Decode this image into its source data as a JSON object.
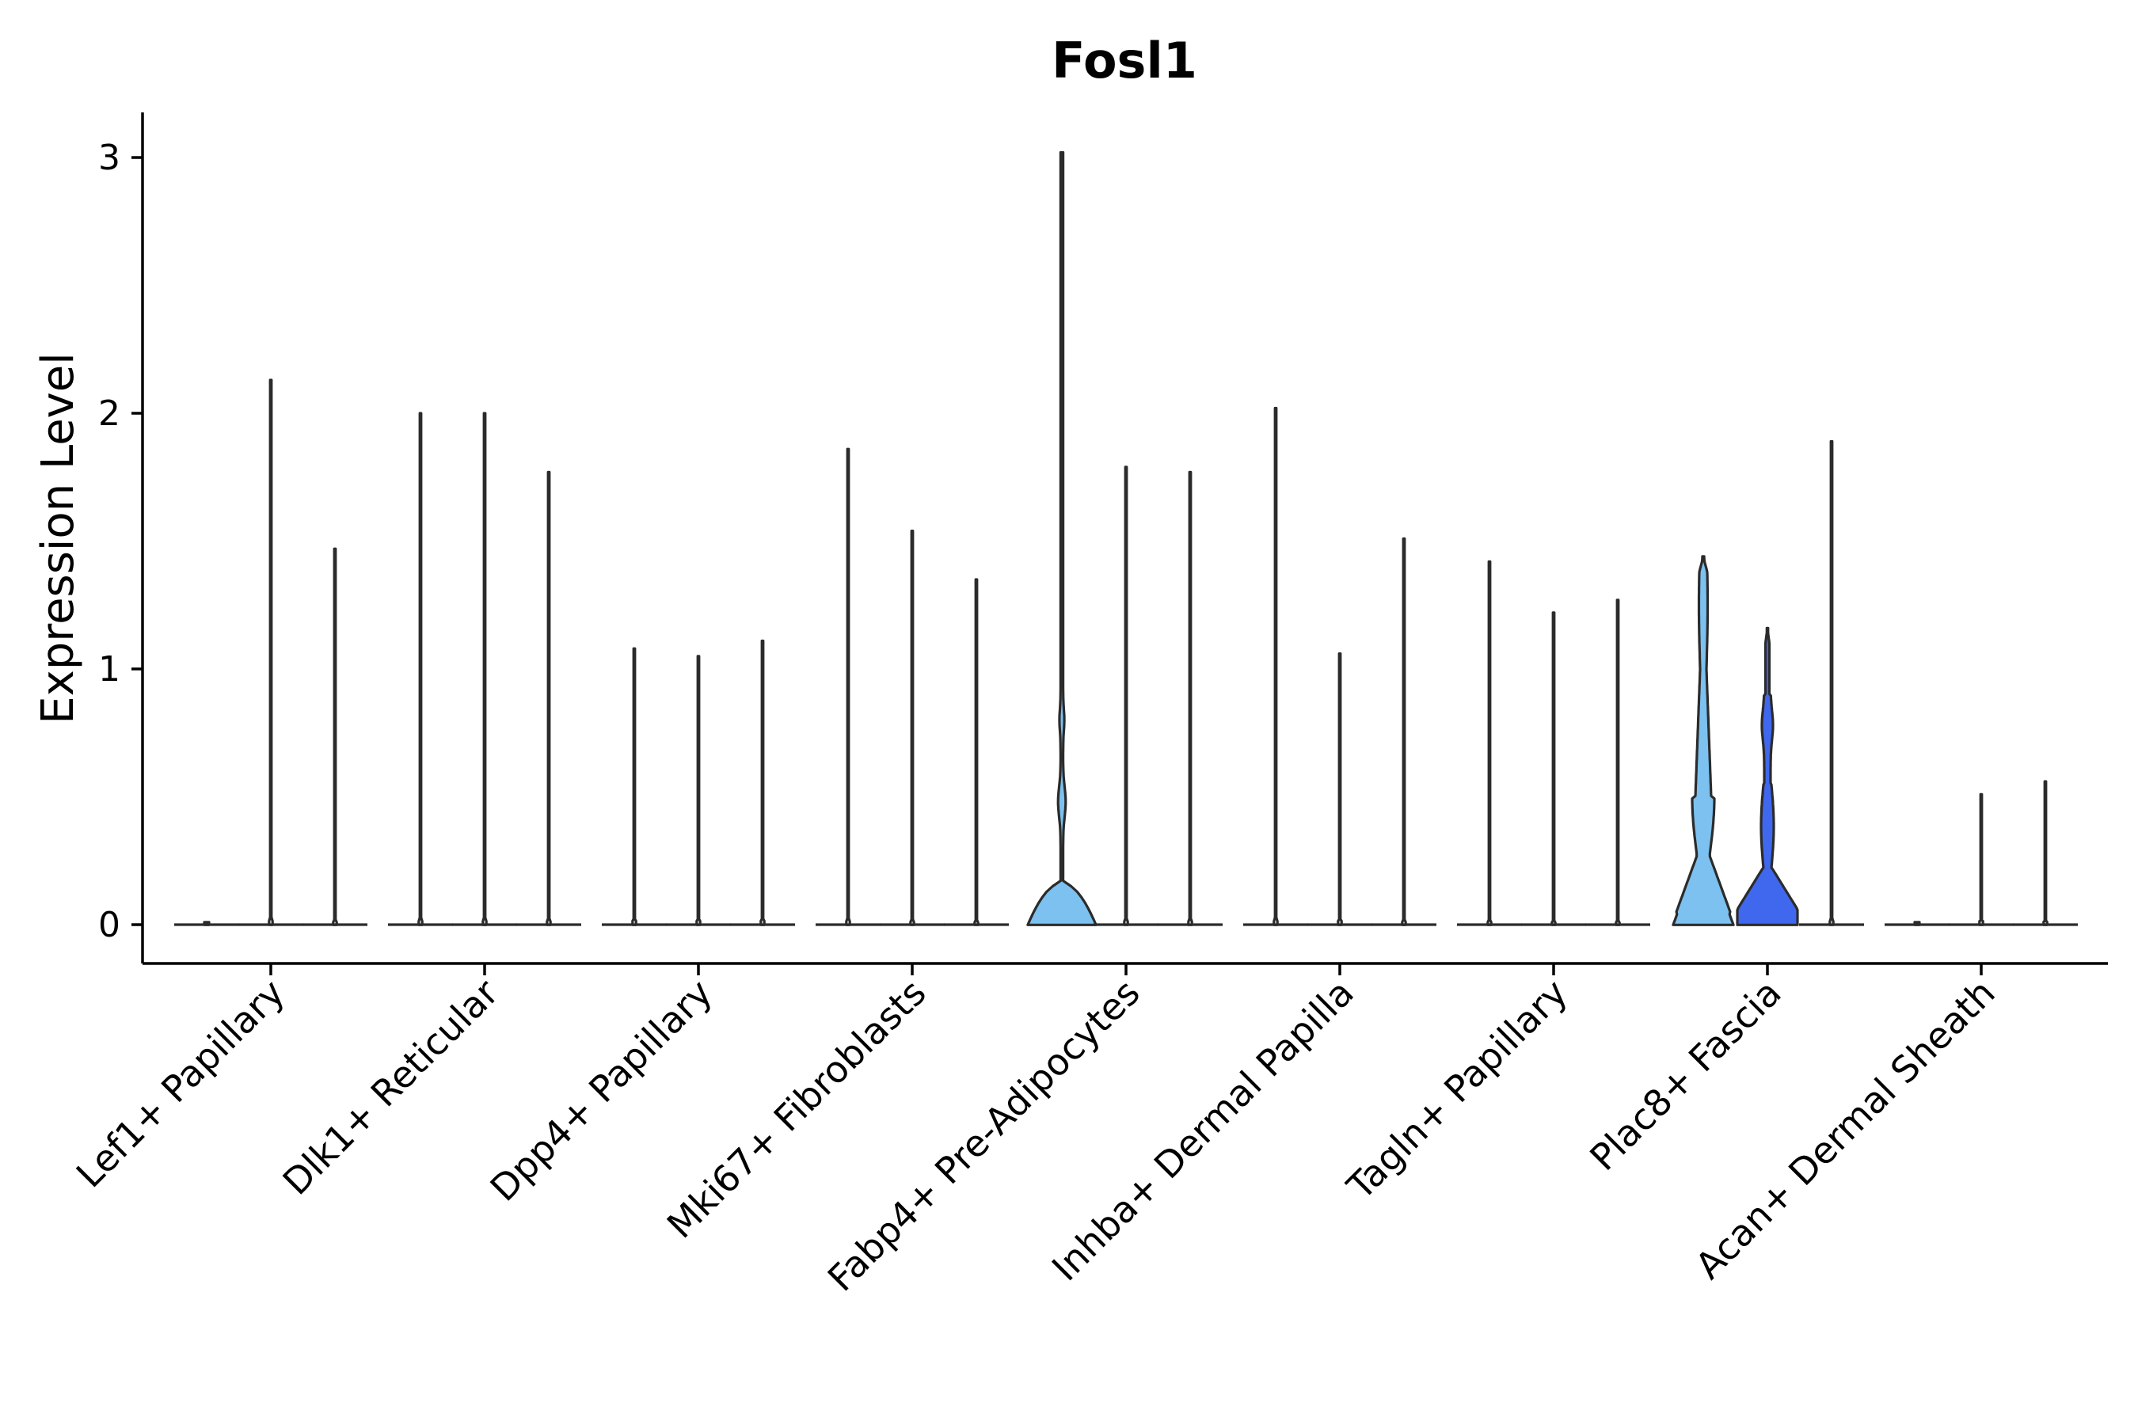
{
  "chart_data": {
    "type": "violin",
    "title": "Fosl1",
    "xlabel": "",
    "ylabel": "Expression Level",
    "ylim": [
      -0.15,
      3.18
    ],
    "yticks": [
      0,
      1,
      2,
      3
    ],
    "ytick_labels": [
      "0",
      "1",
      "2",
      "3"
    ],
    "grid": false,
    "legend": "none",
    "categories": [
      "Lef1+ Papillary",
      "Dlk1+ Reticular",
      "Dpp4+ Papillary",
      "Mki67+ Fibroblasts",
      "Fabp4+ Pre-Adipocytes",
      "Inhba+ Dermal Papilla",
      "Tagln+ Papillary",
      "Plac8+ Fascia",
      "Acan+ Dermal Sheath"
    ],
    "violins": [
      {
        "group": 0,
        "pos": -0.3,
        "max": 0.01,
        "fill": "#ffffff",
        "kind": "flat"
      },
      {
        "group": 0,
        "pos": 0.0,
        "max": 2.13,
        "fill": "#ffffff",
        "kind": "spike"
      },
      {
        "group": 0,
        "pos": 0.3,
        "max": 1.47,
        "fill": "#ffffff",
        "kind": "spike"
      },
      {
        "group": 1,
        "pos": -0.3,
        "max": 2.0,
        "fill": "#ffffff",
        "kind": "spike"
      },
      {
        "group": 1,
        "pos": 0.0,
        "max": 2.0,
        "fill": "#ffffff",
        "kind": "spike"
      },
      {
        "group": 1,
        "pos": 0.3,
        "max": 1.77,
        "fill": "#ffffff",
        "kind": "spike"
      },
      {
        "group": 2,
        "pos": -0.3,
        "max": 1.08,
        "fill": "#ffffff",
        "kind": "spike"
      },
      {
        "group": 2,
        "pos": 0.0,
        "max": 1.05,
        "fill": "#ffffff",
        "kind": "spike"
      },
      {
        "group": 2,
        "pos": 0.3,
        "max": 1.11,
        "fill": "#ffffff",
        "kind": "spike"
      },
      {
        "group": 3,
        "pos": -0.3,
        "max": 1.86,
        "fill": "#ffffff",
        "kind": "spike"
      },
      {
        "group": 3,
        "pos": 0.0,
        "max": 1.54,
        "fill": "#ffffff",
        "kind": "spike"
      },
      {
        "group": 3,
        "pos": 0.3,
        "max": 1.35,
        "fill": "#ffffff",
        "kind": "spike"
      },
      {
        "group": 4,
        "pos": -0.3,
        "max": 3.02,
        "fill": "#7cc1ef",
        "kind": "pear"
      },
      {
        "group": 4,
        "pos": 0.0,
        "max": 1.79,
        "fill": "#ffffff",
        "kind": "spike"
      },
      {
        "group": 4,
        "pos": 0.3,
        "max": 1.77,
        "fill": "#ffffff",
        "kind": "spike"
      },
      {
        "group": 5,
        "pos": -0.3,
        "max": 2.02,
        "fill": "#ffffff",
        "kind": "spike"
      },
      {
        "group": 5,
        "pos": 0.0,
        "max": 1.06,
        "fill": "#ffffff",
        "kind": "spike"
      },
      {
        "group": 5,
        "pos": 0.3,
        "max": 1.51,
        "fill": "#ffffff",
        "kind": "spike"
      },
      {
        "group": 6,
        "pos": -0.3,
        "max": 1.42,
        "fill": "#ffffff",
        "kind": "spike"
      },
      {
        "group": 6,
        "pos": 0.0,
        "max": 1.22,
        "fill": "#ffffff",
        "kind": "spike"
      },
      {
        "group": 6,
        "pos": 0.3,
        "max": 1.27,
        "fill": "#ffffff",
        "kind": "spike"
      },
      {
        "group": 7,
        "pos": -0.3,
        "max": 1.44,
        "fill": "#7cc1ef",
        "kind": "broad"
      },
      {
        "group": 7,
        "pos": 0.0,
        "max": 1.16,
        "fill": "#4068ee",
        "kind": "broad2"
      },
      {
        "group": 7,
        "pos": 0.3,
        "max": 1.89,
        "fill": "#ffffff",
        "kind": "spike"
      },
      {
        "group": 8,
        "pos": -0.3,
        "max": 0.01,
        "fill": "#ffffff",
        "kind": "flat"
      },
      {
        "group": 8,
        "pos": 0.0,
        "max": 0.51,
        "fill": "#ffffff",
        "kind": "spike"
      },
      {
        "group": 8,
        "pos": 0.3,
        "max": 0.56,
        "fill": "#ffffff",
        "kind": "spike"
      }
    ]
  }
}
